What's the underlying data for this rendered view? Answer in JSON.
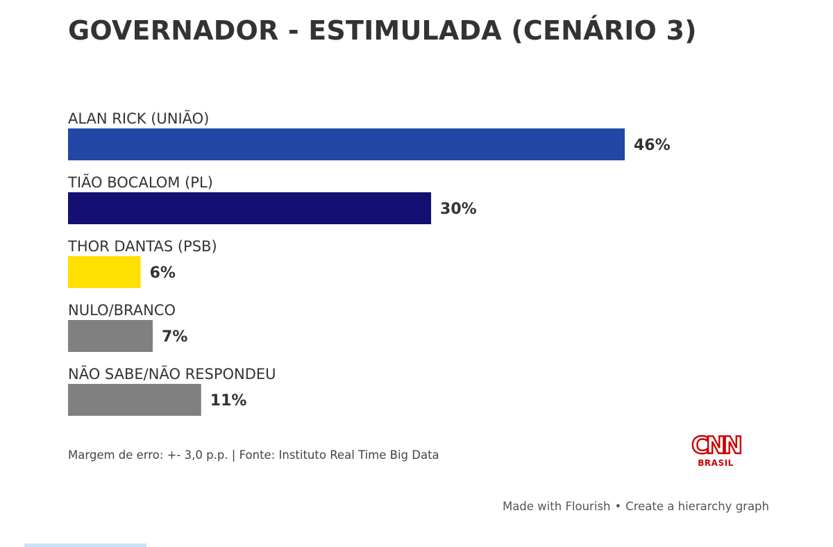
{
  "chart_data": {
    "type": "bar",
    "orientation": "horizontal",
    "title": "GOVERNADOR - ESTIMULADA (CENÁRIO 3)",
    "categories": [
      "ALAN RICK (UNIÃO)",
      "TIÃO BOCALOM (PL)",
      "THOR DANTAS (PSB)",
      "NULO/BRANCO",
      "NÃO SABE/NÃO RESPONDEU"
    ],
    "values": [
      46,
      30,
      6,
      7,
      11
    ],
    "value_labels": [
      "46%",
      "30%",
      "6%",
      "7%",
      "11%"
    ],
    "colors": [
      "#2347a5",
      "#130f73",
      "#ffe000",
      "#808080",
      "#808080"
    ],
    "xlim": [
      0,
      50
    ],
    "unit": "%",
    "grid": false,
    "legend": "none"
  },
  "footnote": "Margem de erro: +- 3,0 p.p. | Fonte: Instituto Real Time Big Data",
  "logo": {
    "mark": "CNN",
    "sub": "BRASIL",
    "color": "#cc0000"
  },
  "credit": {
    "made_with": "Made with Flourish",
    "separator": "•",
    "link": "Create a hierarchy graph"
  }
}
